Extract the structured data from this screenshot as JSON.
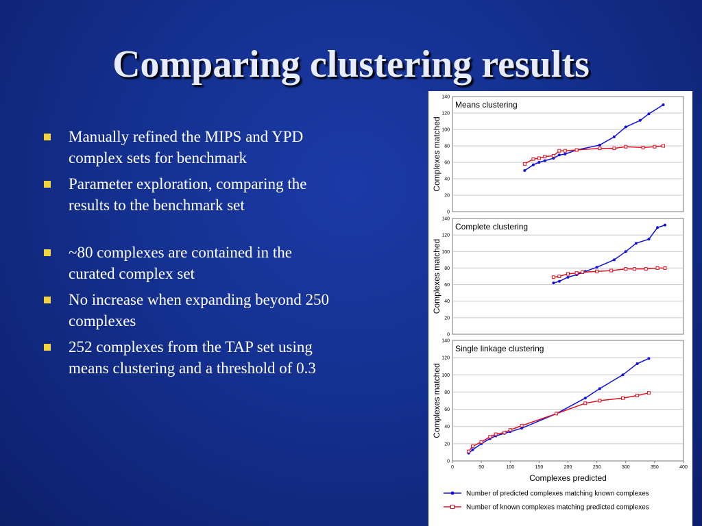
{
  "slide": {
    "title": "Comparing clustering results",
    "bullets": [
      "Manually refined the MIPS and YPD complex sets for benchmark",
      "Parameter exploration, comparing the results to the benchmark set",
      "~80 complexes are contained in the curated complex set",
      "No increase when expanding beyond 250 complexes",
      "252 complexes from the TAP set using means clustering and a threshold of 0.3"
    ]
  },
  "colors": {
    "series_blue": "#1010e0",
    "series_red": "#e01020",
    "bullet": "#f3d43b"
  },
  "figure": {
    "xlabel": "Complexes predicted",
    "legend": [
      "Number of predicted complexes matching known complexes",
      "Number of known complexes matching predicted complexes"
    ]
  },
  "chart_data": [
    {
      "type": "line",
      "title": "Means clustering",
      "ylabel": "Complexes matched",
      "xlim": [
        0,
        400
      ],
      "ylim": [
        0,
        140
      ],
      "yticks": [
        0,
        20,
        40,
        60,
        80,
        100,
        120,
        140
      ],
      "legend": "bottom",
      "series": [
        {
          "name": "Number of predicted complexes matching known complexes",
          "x": [
            125,
            140,
            150,
            160,
            175,
            185,
            195,
            215,
            255,
            280,
            300,
            325,
            340,
            365
          ],
          "y": [
            50,
            57,
            60,
            62,
            65,
            69,
            70,
            75,
            81,
            91,
            103,
            111,
            119,
            130
          ]
        },
        {
          "name": "Number of known complexes matching predicted complexes",
          "x": [
            125,
            140,
            150,
            160,
            175,
            185,
            195,
            215,
            255,
            280,
            300,
            330,
            350,
            365
          ],
          "y": [
            58,
            64,
            65,
            67,
            68,
            74,
            74,
            75,
            77,
            77,
            79,
            78,
            79,
            80
          ]
        }
      ]
    },
    {
      "type": "line",
      "title": "Complete clustering",
      "ylabel": "Complexes matched",
      "xlim": [
        0,
        400
      ],
      "ylim": [
        0,
        140
      ],
      "yticks": [
        0,
        20,
        40,
        60,
        80,
        100,
        120,
        140
      ],
      "series": [
        {
          "name": "Number of predicted complexes matching known complexes",
          "x": [
            175,
            185,
            200,
            215,
            230,
            250,
            280,
            300,
            318,
            340,
            355,
            368
          ],
          "y": [
            62,
            64,
            69,
            72,
            76,
            81,
            90,
            100,
            110,
            115,
            129,
            132
          ]
        },
        {
          "name": "Number of known complexes matching predicted complexes",
          "x": [
            175,
            185,
            200,
            215,
            225,
            250,
            275,
            300,
            315,
            335,
            355,
            368
          ],
          "y": [
            69,
            70,
            73,
            74,
            75,
            76,
            77,
            79,
            79,
            79,
            80,
            80
          ]
        }
      ]
    },
    {
      "type": "line",
      "title": "Single linkage clustering",
      "ylabel": "Complexes matched",
      "xlabel": "Complexes predicted",
      "xlim": [
        0,
        400
      ],
      "xticks": [
        0,
        50,
        100,
        150,
        200,
        250,
        300,
        350,
        400
      ],
      "ylim": [
        0,
        140
      ],
      "yticks": [
        0,
        20,
        40,
        60,
        80,
        100,
        120,
        140
      ],
      "series": [
        {
          "name": "Number of predicted complexes matching known complexes",
          "x": [
            28,
            35,
            50,
            65,
            75,
            90,
            100,
            120,
            180,
            230,
            255,
            295,
            320,
            340
          ],
          "y": [
            9,
            13,
            20,
            26,
            29,
            32,
            34,
            38,
            55,
            73,
            84,
            100,
            113,
            119
          ]
        },
        {
          "name": "Number of known complexes matching predicted complexes",
          "x": [
            28,
            35,
            50,
            65,
            75,
            90,
            100,
            120,
            180,
            230,
            255,
            295,
            320,
            340
          ],
          "y": [
            11,
            17,
            22,
            28,
            31,
            33,
            36,
            41,
            55,
            67,
            70,
            73,
            76,
            79
          ]
        }
      ]
    }
  ]
}
